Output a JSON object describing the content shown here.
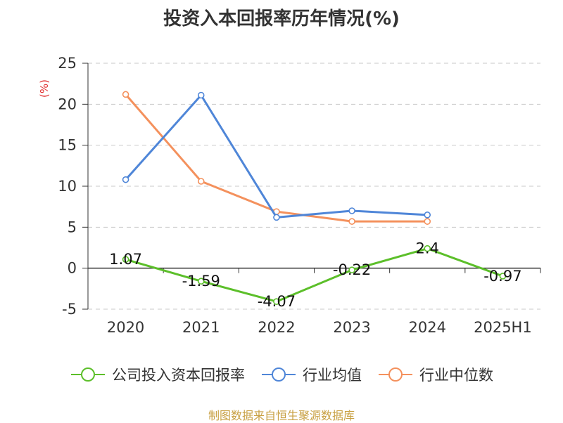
{
  "chart_data": {
    "type": "line",
    "title": "投资入本回报率历年情况(%)",
    "ylabel": "(%)",
    "categories": [
      "2020",
      "2021",
      "2022",
      "2023",
      "2024",
      "2025H1"
    ],
    "ylim": [
      -5,
      25
    ],
    "yticks": [
      -5,
      0,
      5,
      10,
      15,
      20,
      25
    ],
    "grid": true,
    "legend_position": "bottom",
    "series": [
      {
        "name": "公司投入资本回报率",
        "color": "#5cbf2a",
        "values": [
          1.07,
          -1.59,
          -4.07,
          -0.22,
          2.4,
          -0.97
        ],
        "labels": [
          "1.07",
          "-1.59",
          "-4.07",
          "-0.22",
          "2.4",
          "-0.97"
        ]
      },
      {
        "name": "行业均值",
        "color": "#4f86d8",
        "values": [
          10.8,
          21.1,
          6.2,
          7.0,
          6.5,
          null
        ]
      },
      {
        "name": "行业中位数",
        "color": "#f4915d",
        "values": [
          21.2,
          10.6,
          6.9,
          5.7,
          5.7,
          null
        ]
      }
    ]
  },
  "source_note": "制图数据来自恒生聚源数据库"
}
